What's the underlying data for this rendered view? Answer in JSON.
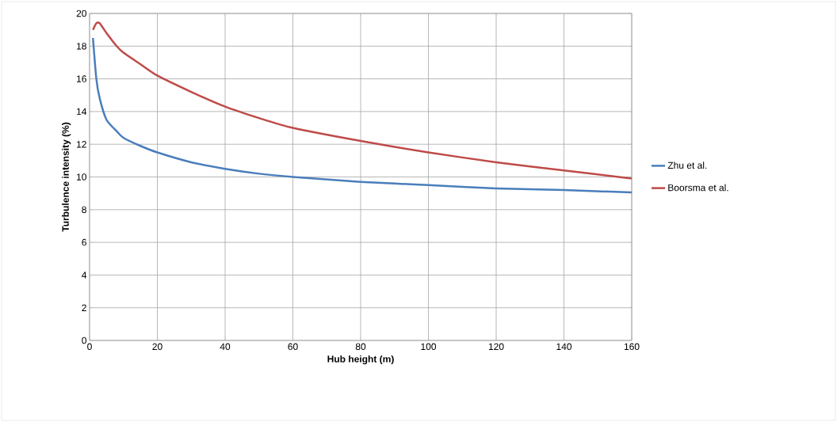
{
  "chart_data": {
    "type": "line",
    "xlabel": "Hub height (m)",
    "ylabel": "Turbulence intensity (%)",
    "xlim": [
      0,
      160
    ],
    "ylim": [
      0,
      20
    ],
    "xticks": [
      0,
      20,
      40,
      60,
      80,
      100,
      120,
      140,
      160
    ],
    "yticks": [
      0,
      2,
      4,
      6,
      8,
      10,
      12,
      14,
      16,
      18,
      20
    ],
    "grid": true,
    "legend": "right",
    "marker": "none",
    "line_style": "solid",
    "series": [
      {
        "name": "Zhu et al.",
        "color": "#4a7ebb",
        "x": [
          1,
          2,
          3,
          5,
          8,
          10,
          15,
          20,
          30,
          40,
          50,
          60,
          80,
          100,
          120,
          140,
          160
        ],
        "values": [
          18.5,
          16,
          14.8,
          13.5,
          12.8,
          12.4,
          11.9,
          11.5,
          10.9,
          10.5,
          10.2,
          10.0,
          9.7,
          9.5,
          9.3,
          9.2,
          9.05
        ]
      },
      {
        "name": "Boorsma et al.",
        "color": "#be4b48",
        "x": [
          1,
          2,
          3,
          5,
          8,
          10,
          15,
          20,
          30,
          40,
          50,
          60,
          80,
          100,
          120,
          140,
          160
        ],
        "values": [
          19.0,
          19.4,
          19.4,
          18.8,
          18.0,
          17.6,
          16.9,
          16.2,
          15.2,
          14.3,
          13.6,
          13.0,
          12.2,
          11.5,
          10.9,
          10.4,
          9.9
        ]
      }
    ]
  }
}
